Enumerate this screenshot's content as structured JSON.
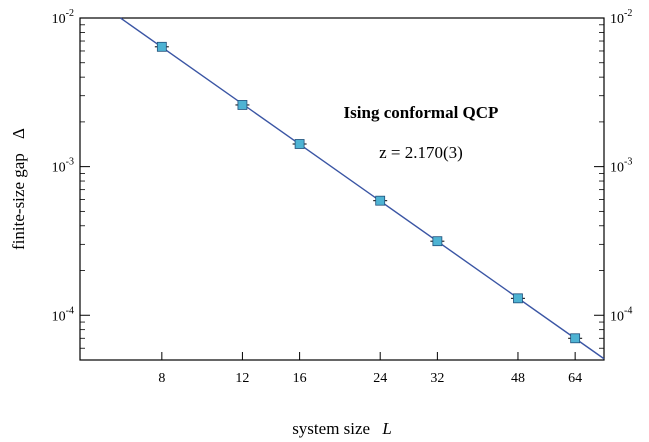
{
  "chart_data": {
    "type": "scatter",
    "title": "",
    "xlabel": "system size",
    "xlabel_symbol": "L",
    "ylabel": "finite-size gap",
    "ylabel_symbol": "Δ",
    "xscale": "log",
    "yscale": "log",
    "xlim": [
      5.3,
      74
    ],
    "ylim": [
      5e-05,
      0.01
    ],
    "x_ticks": [
      8,
      12,
      16,
      24,
      32,
      48,
      64
    ],
    "y_ticks": [
      {
        "value": 0.01,
        "base": "10",
        "exp": "-2"
      },
      {
        "value": 0.001,
        "base": "10",
        "exp": "-3"
      },
      {
        "value": 0.0001,
        "base": "10",
        "exp": "-4"
      }
    ],
    "right_y_labels": true,
    "grid": false,
    "series": [
      {
        "x": [
          8,
          12,
          16,
          24,
          32,
          48,
          64
        ],
        "y": [
          0.0064,
          0.0026,
          0.00142,
          0.00059,
          0.000315,
          0.00013,
          7e-05
        ],
        "marker": "square",
        "marker_color": "#4eb3d3",
        "fit_exponent": 2.17,
        "fit_line_color": "#3a55a4"
      }
    ],
    "annotations": {
      "label": "Ising conformal QCP",
      "exponent": "z = 2.170(3)"
    }
  }
}
